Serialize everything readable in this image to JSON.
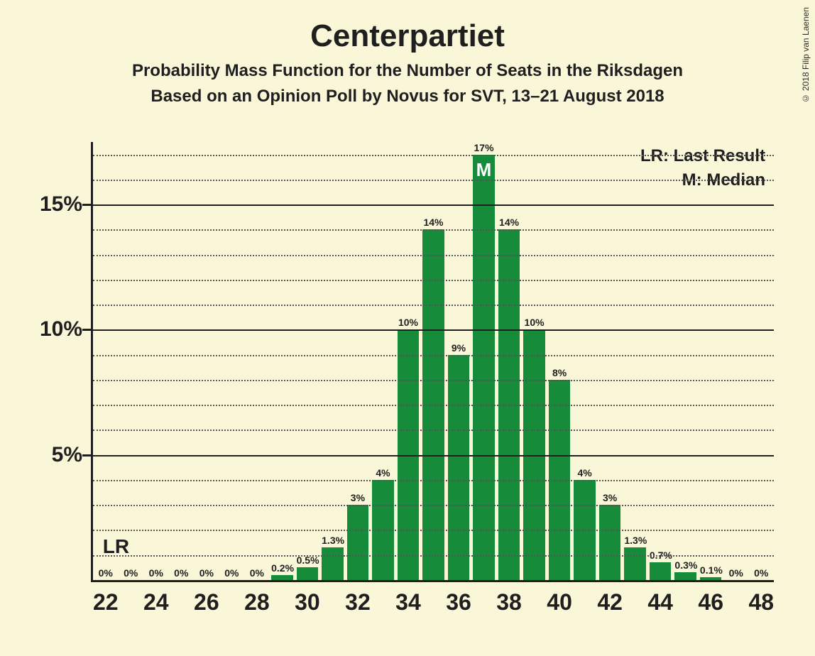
{
  "copyright": "© 2018 Filip van Laenen",
  "title": "Centerpartiet",
  "subtitle1": "Probability Mass Function for the Number of Seats in the Riksdagen",
  "subtitle2": "Based on an Opinion Poll by Novus for SVT, 13–21 August 2018",
  "legend": {
    "lr": "LR: Last Result",
    "m": "M: Median"
  },
  "chart": {
    "type": "bar",
    "bar_color": "#168b3a",
    "background_color": "#faf6d8",
    "grid_color_dotted": "#555555",
    "grid_color_solid": "#1f1f1f",
    "text_color": "#1f1f1f",
    "median_text_color": "#ffffff",
    "title_fontsize": 44,
    "subtitle_fontsize": 24,
    "axis_label_fontsize": 30,
    "xaxis_label_fontsize": 32,
    "bar_label_fontsize": 14,
    "ymax": 17.5,
    "y_ticks_major": [
      5,
      10,
      15
    ],
    "y_ticks_minor": [
      1,
      2,
      3,
      4,
      6,
      7,
      8,
      9,
      11,
      12,
      13,
      14,
      16,
      17
    ],
    "x_ticks": [
      22,
      24,
      26,
      28,
      30,
      32,
      34,
      36,
      38,
      40,
      42,
      44,
      46,
      48
    ],
    "x_min": 22,
    "x_max": 48,
    "bar_width_ratio": 0.86,
    "lr_position": 22,
    "median_position": 37,
    "median_marker": "M",
    "lr_marker": "LR",
    "bars": [
      {
        "x": 22,
        "v": 0,
        "label": "0%"
      },
      {
        "x": 23,
        "v": 0,
        "label": "0%"
      },
      {
        "x": 24,
        "v": 0,
        "label": "0%"
      },
      {
        "x": 25,
        "v": 0,
        "label": "0%"
      },
      {
        "x": 26,
        "v": 0,
        "label": "0%"
      },
      {
        "x": 27,
        "v": 0,
        "label": "0%"
      },
      {
        "x": 28,
        "v": 0,
        "label": "0%"
      },
      {
        "x": 29,
        "v": 0.2,
        "label": "0.2%"
      },
      {
        "x": 30,
        "v": 0.5,
        "label": "0.5%"
      },
      {
        "x": 31,
        "v": 1.3,
        "label": "1.3%"
      },
      {
        "x": 32,
        "v": 3,
        "label": "3%"
      },
      {
        "x": 33,
        "v": 4,
        "label": "4%"
      },
      {
        "x": 34,
        "v": 10,
        "label": "10%"
      },
      {
        "x": 35,
        "v": 14,
        "label": "14%"
      },
      {
        "x": 36,
        "v": 9,
        "label": "9%"
      },
      {
        "x": 37,
        "v": 17,
        "label": "17%"
      },
      {
        "x": 38,
        "v": 14,
        "label": "14%"
      },
      {
        "x": 39,
        "v": 10,
        "label": "10%"
      },
      {
        "x": 40,
        "v": 8,
        "label": "8%"
      },
      {
        "x": 41,
        "v": 4,
        "label": "4%"
      },
      {
        "x": 42,
        "v": 3,
        "label": "3%"
      },
      {
        "x": 43,
        "v": 1.3,
        "label": "1.3%"
      },
      {
        "x": 44,
        "v": 0.7,
        "label": "0.7%"
      },
      {
        "x": 45,
        "v": 0.3,
        "label": "0.3%"
      },
      {
        "x": 46,
        "v": 0.1,
        "label": "0.1%"
      },
      {
        "x": 47,
        "v": 0,
        "label": "0%"
      },
      {
        "x": 48,
        "v": 0,
        "label": "0%"
      }
    ]
  }
}
